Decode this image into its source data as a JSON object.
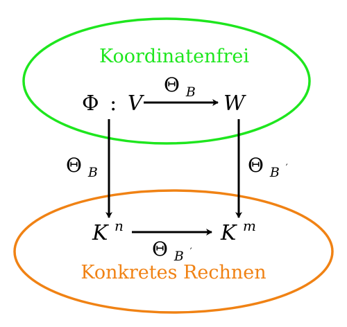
{
  "colors": {
    "top_region": "#1ee61e",
    "bottom_region": "#f08214",
    "ink": "#000000"
  },
  "regions": {
    "top_caption": "Koordinatenfrei",
    "bottom_caption": "Konkretes Rechnen"
  },
  "nodes": {
    "phi": {
      "main": "Φ",
      "colon": ":"
    },
    "v": {
      "main": "V"
    },
    "w": {
      "main": "W"
    },
    "kn": {
      "main": "K",
      "sup": "n"
    },
    "km": {
      "main": "K",
      "sup": "m"
    }
  },
  "arrows": {
    "top": {
      "main": "Θ",
      "sub": "B"
    },
    "left": {
      "main": "Θ",
      "sub": "B"
    },
    "right": {
      "main": "Θ",
      "sub": "B",
      "prime": "′"
    },
    "bottom": {
      "main": "Θ",
      "sub": "B",
      "prime": "′"
    }
  }
}
